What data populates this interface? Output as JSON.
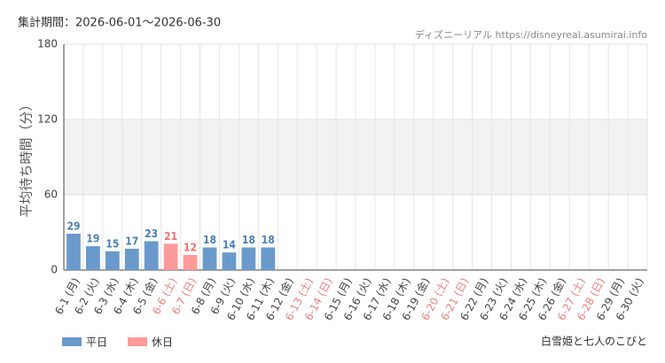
{
  "chart_data": {
    "type": "bar",
    "period": "集計期間：2026-06-01～2026-06-30",
    "source": "ディズニーリアル https://disneyreal.asumirai.info",
    "attraction": "白雪姫と七人のこびと",
    "y_label": "平均待ち時間（分）",
    "categories": [
      "6-1 (月)",
      "6-2 (火)",
      "6-3 (水)",
      "6-4 (木)",
      "6-5 (金)",
      "6-6 (土)",
      "6-7 (日)",
      "6-8 (月)",
      "6-9 (火)",
      "6-10 (水)",
      "6-11 (木)",
      "6-12 (金)",
      "6-13 (土)",
      "6-14 (日)",
      "6-15 (月)",
      "6-16 (火)",
      "6-17 (水)",
      "6-18 (木)",
      "6-19 (金)",
      "6-20 (土)",
      "6-21 (日)",
      "6-22 (月)",
      "6-23 (火)",
      "6-24 (水)",
      "6-25 (木)",
      "6-26 (金)",
      "6-27 (土)",
      "6-28 (日)",
      "6-29 (月)",
      "6-30 (火)"
    ],
    "category_colors": [
      "#444",
      "#444",
      "#444",
      "#444",
      "#444",
      "#f08080",
      "#f08080",
      "#444",
      "#444",
      "#444",
      "#444",
      "#444",
      "#f08080",
      "#f08080",
      "#444",
      "#444",
      "#444",
      "#444",
      "#444",
      "#f08080",
      "#f08080",
      "#444",
      "#444",
      "#444",
      "#444",
      "#444",
      "#f08080",
      "#f08080",
      "#444",
      "#444"
    ],
    "series": [
      {
        "name": "平日",
        "color": "#6a9acb",
        "label_color": "#4a7fb5",
        "values": [
          29,
          19,
          15,
          17,
          23,
          null,
          null,
          18,
          14,
          18,
          18,
          null,
          null,
          null,
          null,
          null,
          null,
          null,
          null,
          null,
          null,
          null,
          null,
          null,
          null,
          null,
          null,
          null,
          null,
          null
        ]
      },
      {
        "name": "休日",
        "color": "#ff9a9a",
        "label_color": "#f07070",
        "values": [
          null,
          null,
          null,
          null,
          null,
          21,
          12,
          null,
          null,
          null,
          null,
          null,
          null,
          null,
          null,
          null,
          null,
          null,
          null,
          null,
          null,
          null,
          null,
          null,
          null,
          null,
          null,
          null,
          null,
          null
        ]
      }
    ],
    "ylim": [
      0,
      180
    ],
    "yticks": [
      0,
      60,
      120,
      180
    ],
    "grid": true,
    "grid_bands": true,
    "data_labels": true
  }
}
